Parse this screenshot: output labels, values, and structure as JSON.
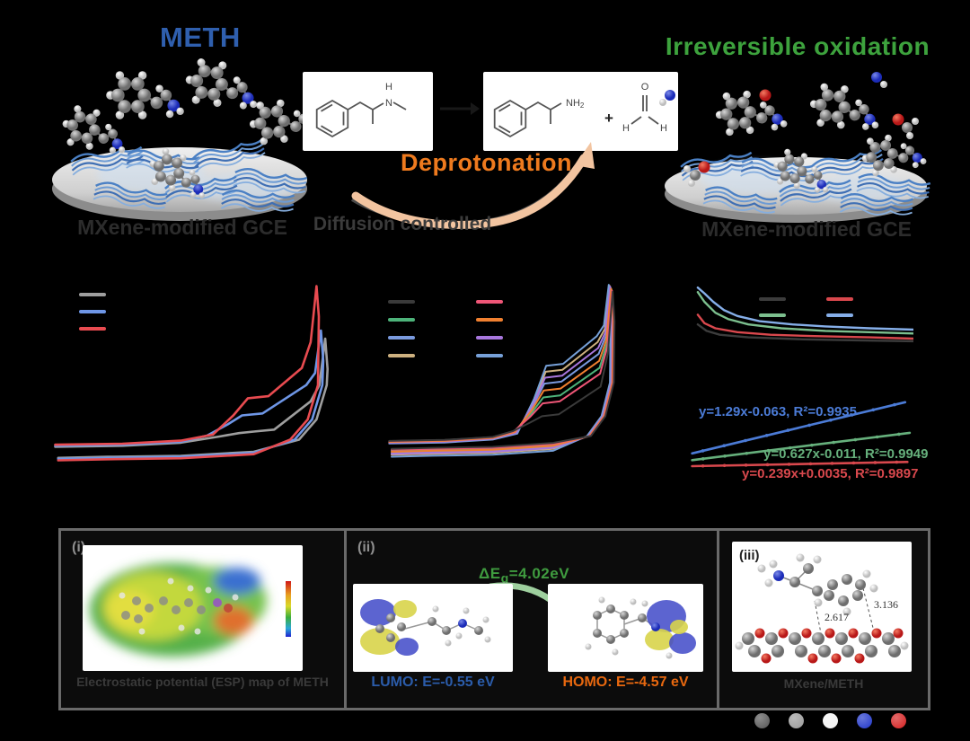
{
  "scheme": {
    "meth_title": "METH",
    "irreversible_oxidation": "Irreversible oxidation",
    "deprotonation": "Deprotonation",
    "diffusion_controlled": "Diffusion controlled",
    "left_electrode_label": "MXene-modified GCE",
    "right_electrode_label": "MXene-modified GCE",
    "reaction": {
      "n_h_label": "H",
      "n_label": "N",
      "nh2": "NH",
      "nh2_sub": "2",
      "plus": "+",
      "o_label": "O",
      "h1": "H",
      "h2": "H"
    },
    "colors": {
      "meth_blue": "#2f5fae",
      "oxidation_green": "#3da23d",
      "deprotonation_orange": "#ee7a1e",
      "electrode_label_gray": "#2c2c2c",
      "mxene_sheet_blue": "#4b80c4"
    }
  },
  "chart_data": [
    {
      "id": "cv1",
      "type": "line",
      "subtype": "cyclic-voltammogram",
      "note": "axis and legend text rendered black on black (not legible); 3 CV loops",
      "legend_position": "upper-left",
      "series": [
        {
          "name": "series-gray",
          "color": "#9e9e9e",
          "base": 0.855,
          "humpX": 0.7,
          "humpY": 0.78,
          "tipX": 0.945,
          "tipY": 0.32,
          "retY": 0.9
        },
        {
          "name": "series-blue",
          "color": "#6e96e6",
          "base": 0.85,
          "humpX": 0.66,
          "humpY": 0.7,
          "tipX": 0.93,
          "tipY": 0.28,
          "retY": 0.905
        },
        {
          "name": "series-red",
          "color": "#e84b50",
          "base": 0.845,
          "humpX": 0.68,
          "humpY": 0.615,
          "tipX": 0.915,
          "tipY": 0.06,
          "retY": 0.912
        }
      ]
    },
    {
      "id": "cv2",
      "type": "line",
      "subtype": "cyclic-voltammogram",
      "note": "8 concentration-dependent CV loops; labels black on black (not legible)",
      "legend_position": "upper-left-two-columns",
      "series": [
        {
          "name": "series-dark",
          "color": "#3a3a3a",
          "base": 0.845,
          "humpX": 0.655,
          "humpY": 0.72,
          "tipX": 0.948,
          "tipY": 0.09,
          "retY": 0.875
        },
        {
          "name": "series-green",
          "color": "#4db37a",
          "base": 0.848,
          "humpX": 0.66,
          "humpY": 0.625,
          "tipX": 0.944,
          "tipY": 0.08,
          "retY": 0.885
        },
        {
          "name": "series-blue",
          "color": "#7a9ade",
          "base": 0.852,
          "humpX": 0.665,
          "humpY": 0.555,
          "tipX": 0.94,
          "tipY": 0.07,
          "retY": 0.895
        },
        {
          "name": "series-tan",
          "color": "#cdb07f",
          "base": 0.856,
          "humpX": 0.67,
          "humpY": 0.495,
          "tipX": 0.936,
          "tipY": 0.06,
          "retY": 0.905
        },
        {
          "name": "series-pink",
          "color": "#ef5677",
          "base": 0.846,
          "humpX": 0.658,
          "humpY": 0.655,
          "tipX": 0.946,
          "tipY": 0.085,
          "retY": 0.88
        },
        {
          "name": "series-orange",
          "color": "#f08030",
          "base": 0.85,
          "humpX": 0.662,
          "humpY": 0.59,
          "tipX": 0.942,
          "tipY": 0.075,
          "retY": 0.89
        },
        {
          "name": "series-purple",
          "color": "#a877dd",
          "base": 0.854,
          "humpX": 0.668,
          "humpY": 0.525,
          "tipX": 0.938,
          "tipY": 0.065,
          "retY": 0.9
        },
        {
          "name": "series-steel",
          "color": "#76a0d8",
          "base": 0.858,
          "humpX": 0.672,
          "humpY": 0.465,
          "tipX": 0.932,
          "tipY": 0.055,
          "retY": 0.915
        }
      ]
    },
    {
      "id": "it-decay",
      "type": "line",
      "subtype": "amperometric-decay",
      "note": "i-t decay curves; labels black on black (not legible)",
      "legend_position": "upper-center-two-columns",
      "series": [
        {
          "name": "series-dark",
          "color": "#3c3c3c",
          "points": [
            [
              0.02,
              0.6
            ],
            [
              0.06,
              0.7
            ],
            [
              0.12,
              0.76
            ],
            [
              0.25,
              0.8
            ],
            [
              0.5,
              0.83
            ],
            [
              0.8,
              0.85
            ],
            [
              1.0,
              0.86
            ]
          ]
        },
        {
          "name": "series-green",
          "color": "#7cbf8e",
          "points": [
            [
              0.02,
              0.1
            ],
            [
              0.05,
              0.25
            ],
            [
              0.1,
              0.42
            ],
            [
              0.16,
              0.52
            ],
            [
              0.25,
              0.6
            ],
            [
              0.4,
              0.66
            ],
            [
              0.6,
              0.7
            ],
            [
              0.8,
              0.72
            ],
            [
              1.0,
              0.74
            ]
          ]
        },
        {
          "name": "series-red",
          "color": "#d9484d",
          "points": [
            [
              0.02,
              0.45
            ],
            [
              0.05,
              0.58
            ],
            [
              0.1,
              0.66
            ],
            [
              0.2,
              0.72
            ],
            [
              0.35,
              0.76
            ],
            [
              0.55,
              0.78
            ],
            [
              0.8,
              0.8
            ],
            [
              1.0,
              0.82
            ]
          ]
        },
        {
          "name": "series-blue",
          "color": "#85aee8",
          "points": [
            [
              0.02,
              0.03
            ],
            [
              0.05,
              0.12
            ],
            [
              0.09,
              0.25
            ],
            [
              0.14,
              0.38
            ],
            [
              0.2,
              0.47
            ],
            [
              0.3,
              0.55
            ],
            [
              0.45,
              0.6
            ],
            [
              0.6,
              0.63
            ],
            [
              0.8,
              0.66
            ],
            [
              1.0,
              0.68
            ]
          ]
        }
      ]
    },
    {
      "id": "calibration",
      "type": "scatter-line",
      "subtype": "calibration-plot",
      "note": "three linear fits with visible colored equations",
      "series": [
        {
          "name": "fit-blue",
          "color": "#4b7bd6",
          "equation": "y=1.29x-0.063, R²=0.9935",
          "points": [
            [
              0.03,
              0.65
            ],
            [
              0.96,
              0.05
            ]
          ]
        },
        {
          "name": "fit-green",
          "color": "#66b07c",
          "equation": "y=0.627x-0.011, R²=0.9949",
          "points": [
            [
              0.03,
              0.73
            ],
            [
              0.98,
              0.41
            ]
          ]
        },
        {
          "name": "fit-red",
          "color": "#d8484d",
          "equation": "y=0.239x+0.0035, R²=0.9897",
          "points": [
            [
              0.03,
              0.8
            ],
            [
              0.97,
              0.75
            ]
          ]
        }
      ]
    }
  ],
  "panels": {
    "panel_i": {
      "label": "(i)",
      "caption": "Electrostatic potential (ESP) map of METH"
    },
    "panel_ii": {
      "label": "(ii)",
      "gap_prefix": "ΔE",
      "gap_sub": "g",
      "gap_value": "=4.02eV",
      "gap_color": "#3f9b3f",
      "lumo_caption": "LUMO: E=-0.55 eV",
      "lumo_color": "#2b5caa",
      "homo_caption": "HOMO: E=-4.57 eV",
      "homo_color": "#e8680f"
    },
    "panel_iii": {
      "label": "(iii)",
      "distance_1": "2.617",
      "distance_2": "3.136",
      "caption": "MXene/METH"
    }
  },
  "atom_legend": {
    "note": "atom color key spheres; text labels black on black (not legible)",
    "colors": [
      "#555555",
      "#9a9a9a",
      "#f2f2f2",
      "#1f35c8",
      "#d41f1f"
    ]
  }
}
